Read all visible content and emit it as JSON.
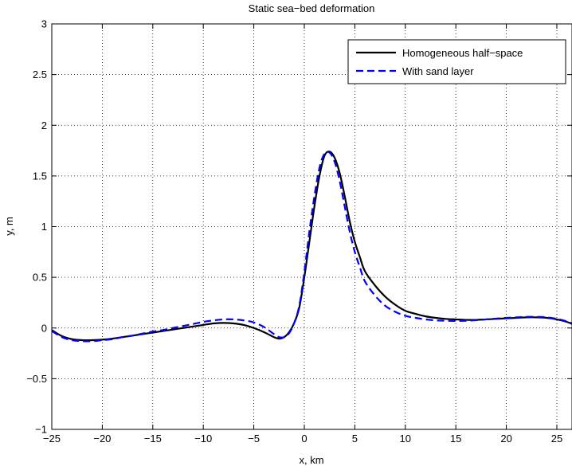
{
  "chart_data": {
    "type": "line",
    "title": "Static sea−bed deformation",
    "xlabel": "x, km",
    "ylabel": "y, m",
    "xlim": [
      -25,
      26.5
    ],
    "ylim": [
      -1,
      3
    ],
    "xticks": [
      -25,
      -20,
      -15,
      -10,
      -5,
      0,
      5,
      10,
      15,
      20,
      25
    ],
    "xtick_labels": [
      "−25",
      "−20",
      "−15",
      "−10",
      "−5",
      "0",
      "5",
      "10",
      "15",
      "20",
      "25"
    ],
    "yticks": [
      -1,
      -0.5,
      0,
      0.5,
      1,
      1.5,
      2,
      2.5,
      3
    ],
    "ytick_labels": [
      "−1",
      "−0.5",
      "0",
      "0.5",
      "1",
      "1.5",
      "2",
      "2.5",
      "3"
    ],
    "grid": true,
    "legend_position": "top-right",
    "series": [
      {
        "name": "Homogeneous half−space",
        "style": "solid",
        "color": "#000000",
        "points": [
          [
            -25,
            -0.02
          ],
          [
            -24,
            -0.08
          ],
          [
            -23,
            -0.11
          ],
          [
            -22,
            -0.12
          ],
          [
            -21,
            -0.12
          ],
          [
            -20,
            -0.115
          ],
          [
            -19,
            -0.105
          ],
          [
            -18,
            -0.09
          ],
          [
            -17,
            -0.075
          ],
          [
            -16,
            -0.06
          ],
          [
            -15,
            -0.045
          ],
          [
            -14,
            -0.03
          ],
          [
            -13,
            -0.015
          ],
          [
            -12,
            0.0
          ],
          [
            -11,
            0.015
          ],
          [
            -10,
            0.03
          ],
          [
            -9,
            0.045
          ],
          [
            -8,
            0.05
          ],
          [
            -7,
            0.045
          ],
          [
            -6,
            0.03
          ],
          [
            -5,
            0.0
          ],
          [
            -4,
            -0.04
          ],
          [
            -3,
            -0.09
          ],
          [
            -2.5,
            -0.105
          ],
          [
            -2,
            -0.09
          ],
          [
            -1.5,
            -0.04
          ],
          [
            -1,
            0.05
          ],
          [
            -0.5,
            0.2
          ],
          [
            0,
            0.5
          ],
          [
            0.5,
            0.85
          ],
          [
            1,
            1.2
          ],
          [
            1.5,
            1.5
          ],
          [
            2,
            1.7
          ],
          [
            2.5,
            1.74
          ],
          [
            3,
            1.68
          ],
          [
            3.5,
            1.53
          ],
          [
            4,
            1.3
          ],
          [
            4.5,
            1.05
          ],
          [
            5,
            0.85
          ],
          [
            5.5,
            0.7
          ],
          [
            6,
            0.56
          ],
          [
            7,
            0.42
          ],
          [
            8,
            0.31
          ],
          [
            9,
            0.23
          ],
          [
            10,
            0.17
          ],
          [
            11,
            0.14
          ],
          [
            12,
            0.115
          ],
          [
            13,
            0.1
          ],
          [
            14,
            0.09
          ],
          [
            15,
            0.085
          ],
          [
            16,
            0.08
          ],
          [
            17,
            0.08
          ],
          [
            18,
            0.085
          ],
          [
            19,
            0.09
          ],
          [
            20,
            0.095
          ],
          [
            21,
            0.1
          ],
          [
            22,
            0.105
          ],
          [
            23,
            0.105
          ],
          [
            24,
            0.1
          ],
          [
            25,
            0.085
          ],
          [
            26,
            0.06
          ],
          [
            26.5,
            0.04
          ]
        ]
      },
      {
        "name": "With sand layer",
        "style": "dashed",
        "color": "#0000ff",
        "points": [
          [
            -25,
            -0.03
          ],
          [
            -24,
            -0.09
          ],
          [
            -23,
            -0.12
          ],
          [
            -22,
            -0.13
          ],
          [
            -21,
            -0.13
          ],
          [
            -20,
            -0.12
          ],
          [
            -19,
            -0.11
          ],
          [
            -18,
            -0.09
          ],
          [
            -17,
            -0.075
          ],
          [
            -16,
            -0.055
          ],
          [
            -15,
            -0.035
          ],
          [
            -14,
            -0.02
          ],
          [
            -13,
            0.0
          ],
          [
            -12,
            0.02
          ],
          [
            -11,
            0.04
          ],
          [
            -10,
            0.06
          ],
          [
            -9,
            0.075
          ],
          [
            -8,
            0.085
          ],
          [
            -7,
            0.085
          ],
          [
            -6,
            0.075
          ],
          [
            -5,
            0.055
          ],
          [
            -4,
            0.01
          ],
          [
            -3,
            -0.06
          ],
          [
            -2.5,
            -0.09
          ],
          [
            -2,
            -0.09
          ],
          [
            -1.5,
            -0.05
          ],
          [
            -1,
            0.05
          ],
          [
            -0.5,
            0.22
          ],
          [
            0,
            0.55
          ],
          [
            0.5,
            0.95
          ],
          [
            1,
            1.3
          ],
          [
            1.5,
            1.58
          ],
          [
            2,
            1.72
          ],
          [
            2.5,
            1.73
          ],
          [
            3,
            1.64
          ],
          [
            3.5,
            1.45
          ],
          [
            4,
            1.2
          ],
          [
            4.5,
            0.95
          ],
          [
            5,
            0.75
          ],
          [
            5.5,
            0.6
          ],
          [
            6,
            0.46
          ],
          [
            7,
            0.32
          ],
          [
            8,
            0.22
          ],
          [
            9,
            0.16
          ],
          [
            10,
            0.12
          ],
          [
            11,
            0.1
          ],
          [
            12,
            0.085
          ],
          [
            13,
            0.075
          ],
          [
            14,
            0.072
          ],
          [
            15,
            0.07
          ],
          [
            16,
            0.072
          ],
          [
            17,
            0.077
          ],
          [
            18,
            0.085
          ],
          [
            19,
            0.093
          ],
          [
            20,
            0.1
          ],
          [
            21,
            0.105
          ],
          [
            22,
            0.11
          ],
          [
            23,
            0.11
          ],
          [
            24,
            0.105
          ],
          [
            25,
            0.09
          ],
          [
            26,
            0.065
          ],
          [
            26.5,
            0.045
          ]
        ]
      }
    ]
  }
}
